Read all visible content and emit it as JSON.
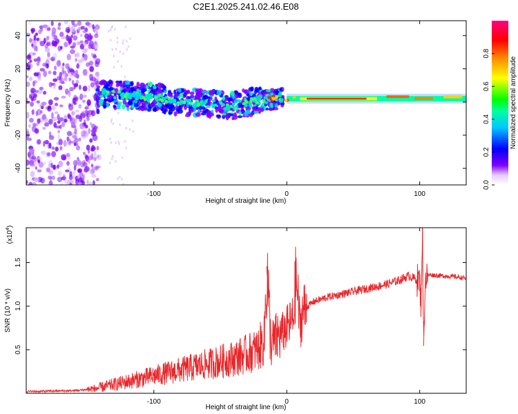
{
  "title": "C2E1.2025.241.02.46.E08",
  "chart_data": [
    {
      "type": "heatmap",
      "name": "spectrogram",
      "xlabel": "Height of straight line (km)",
      "ylabel": "Frequency (Hz)",
      "xlim": [
        -196,
        135
      ],
      "ylim": [
        -50,
        49
      ],
      "xticks": [
        -100,
        0,
        100
      ],
      "xtick_labels": [
        "-100",
        "0",
        "100"
      ],
      "yticks": [
        -40,
        -20,
        0,
        20,
        40
      ],
      "ytick_labels": [
        "-40",
        "-20",
        "0",
        "20",
        "40"
      ],
      "colorbar": {
        "label": "Normalized spectral amplitude",
        "range": [
          0,
          1
        ],
        "ticks": [
          0.0,
          0.2,
          0.4,
          0.6,
          0.8
        ],
        "tick_labels": [
          "0.0",
          "0.2",
          "0.4",
          "0.6",
          "0.8"
        ],
        "colors": [
          "#ffffff",
          "#8000ff",
          "#0000ff",
          "#00ffff",
          "#00ff00",
          "#ffff00",
          "#ff8000",
          "#ff0000",
          "#ff0080"
        ]
      },
      "features": {
        "noise_region_x": [
          -196,
          -143
        ],
        "signal_ridge": [
          {
            "x": -140,
            "f": 5
          },
          {
            "x": -100,
            "f": 3
          },
          {
            "x": -80,
            "f": 0
          },
          {
            "x": -40,
            "f": -2
          },
          {
            "x": -20,
            "f": 1
          },
          {
            "x": 0,
            "f": 2
          },
          {
            "x": 50,
            "f": 2
          },
          {
            "x": 100,
            "f": 2
          },
          {
            "x": 135,
            "f": 2
          }
        ]
      }
    },
    {
      "type": "line",
      "name": "snr",
      "xlabel": "Height of straight line (km)",
      "ylabel": "SNR (10 * v/v)",
      "y_multiplier": "(x10",
      "y_multiplier_exp": "4",
      "xlim": [
        -196,
        135
      ],
      "ylim": [
        0,
        19000
      ],
      "xticks": [
        -100,
        0,
        100
      ],
      "xtick_labels": [
        "-100",
        "0",
        "100"
      ],
      "yticks": [
        5000,
        10000,
        15000
      ],
      "ytick_labels": [
        "0.5",
        "1.0",
        "1.5"
      ],
      "line_color": "#ff0000",
      "series": [
        {
          "name": "SNR",
          "x": [
            -196,
            -160,
            -145,
            -130,
            -115,
            -100,
            -85,
            -70,
            -55,
            -40,
            -30,
            -22,
            -17,
            -15,
            -12,
            -7,
            -3,
            0,
            5,
            7,
            10,
            12,
            20,
            30,
            45,
            60,
            75,
            85,
            92,
            98,
            100,
            101,
            102,
            103,
            104,
            105,
            108,
            115,
            125,
            135
          ],
          "y": [
            200,
            300,
            500,
            1000,
            1500,
            2000,
            2500,
            3000,
            3500,
            4000,
            4500,
            5000,
            6000,
            14500,
            5500,
            6500,
            7000,
            7500,
            8500,
            13500,
            7500,
            9500,
            10500,
            11000,
            11500,
            12000,
            12500,
            13000,
            13500,
            13000,
            13000,
            10000,
            19000,
            5500,
            12500,
            13500,
            13600,
            13500,
            13400,
            13200
          ]
        }
      ]
    }
  ]
}
